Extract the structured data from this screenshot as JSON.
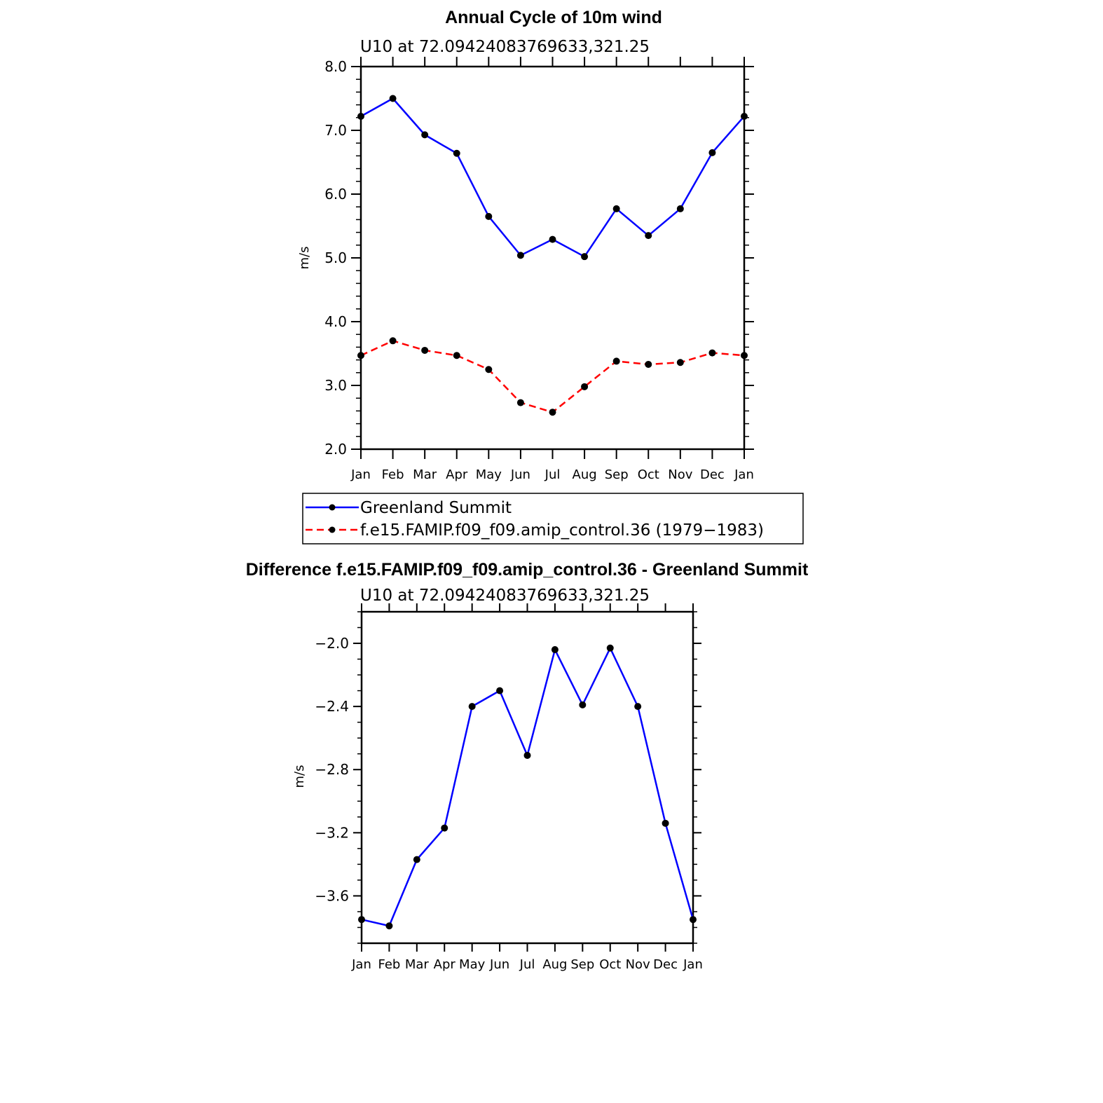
{
  "colors": {
    "series_obs": "#0000ff",
    "series_model": "#ff0000",
    "marker": "#000000",
    "axes": "#000000"
  },
  "chart_data": [
    {
      "type": "line",
      "title": "Annual Cycle of 10m wind",
      "subtitle": "U10 at 72.09424083769633,321.25",
      "xlabel": "",
      "ylabel": "m/s",
      "categories": [
        "Jan",
        "Feb",
        "Mar",
        "Apr",
        "May",
        "Jun",
        "Jul",
        "Aug",
        "Sep",
        "Oct",
        "Nov",
        "Dec",
        "Jan"
      ],
      "ylim": [
        2.0,
        8.0
      ],
      "yticks": [
        "2.0",
        "3.0",
        "4.0",
        "5.0",
        "6.0",
        "7.0",
        "8.0"
      ],
      "grid": false,
      "legend_position": "bottom",
      "series": [
        {
          "name": "Greenland Summit",
          "color": "#0000ff",
          "line_style": "solid",
          "values": [
            7.22,
            7.5,
            6.93,
            6.64,
            5.65,
            5.04,
            5.29,
            5.02,
            5.77,
            5.35,
            5.77,
            6.65,
            7.22
          ]
        },
        {
          "name": "f.e15.FAMIP.f09_f09.amip_control.36 (1979−1983)",
          "color": "#ff0000",
          "line_style": "dashed",
          "values": [
            3.47,
            3.7,
            3.55,
            3.47,
            3.25,
            2.73,
            2.58,
            2.98,
            3.38,
            3.33,
            3.36,
            3.51,
            3.47
          ]
        }
      ]
    },
    {
      "type": "line",
      "title": "Difference f.e15.FAMIP.f09_f09.amip_control.36 - Greenland Summit",
      "subtitle": "U10 at 72.09424083769633,321.25",
      "xlabel": "",
      "ylabel": "m/s",
      "categories": [
        "Jan",
        "Feb",
        "Mar",
        "Apr",
        "May",
        "Jun",
        "Jul",
        "Aug",
        "Sep",
        "Oct",
        "Nov",
        "Dec",
        "Jan"
      ],
      "ylim": [
        -3.9,
        -1.8
      ],
      "yticks": [
        "−3.6",
        "−3.2",
        "−2.8",
        "−2.4",
        "−2.0"
      ],
      "grid": false,
      "series": [
        {
          "color": "#0000ff",
          "line_style": "solid",
          "values": [
            -3.75,
            -3.79,
            -3.37,
            -3.17,
            -2.4,
            -2.3,
            -2.71,
            -2.04,
            -2.39,
            -2.03,
            -2.4,
            -3.14,
            -3.75
          ]
        }
      ]
    }
  ]
}
